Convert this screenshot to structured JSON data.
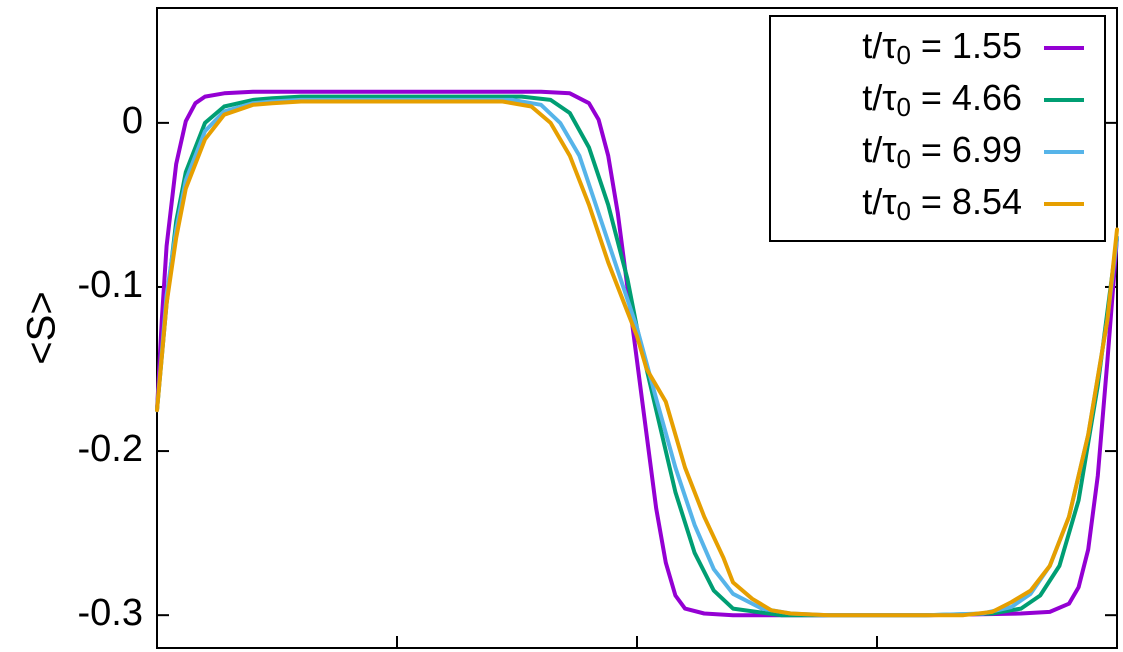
{
  "chart_data": {
    "type": "line",
    "ylabel": "<S>",
    "xlabel": "",
    "xlim": [
      0,
      1
    ],
    "ylim": [
      -0.32,
      0.07
    ],
    "x_ticks": [
      0,
      0.25,
      0.5,
      0.75,
      1
    ],
    "y_ticks": [
      0,
      -0.1,
      -0.2,
      -0.3
    ],
    "y_tick_labels": [
      "0",
      "-0.1",
      "-0.2",
      "-0.3"
    ],
    "grid": false,
    "legend_position": "top-right",
    "series": [
      {
        "name": "1.55",
        "legend_prefix": "t/τ",
        "legend_sub": "0",
        "color": "#9400d3",
        "x": [
          0,
          0.005,
          0.01,
          0.02,
          0.03,
          0.04,
          0.05,
          0.07,
          0.1,
          0.15,
          0.2,
          0.3,
          0.4,
          0.43,
          0.45,
          0.46,
          0.47,
          0.48,
          0.49,
          0.5,
          0.51,
          0.52,
          0.53,
          0.54,
          0.55,
          0.57,
          0.6,
          0.65,
          0.7,
          0.8,
          0.9,
          0.93,
          0.95,
          0.96,
          0.97,
          0.98,
          0.99,
          1.0
        ],
        "y": [
          -0.175,
          -0.12,
          -0.075,
          -0.025,
          0.001,
          0.012,
          0.016,
          0.018,
          0.019,
          0.019,
          0.019,
          0.019,
          0.019,
          0.018,
          0.012,
          0.002,
          -0.02,
          -0.055,
          -0.1,
          -0.145,
          -0.19,
          -0.235,
          -0.268,
          -0.288,
          -0.296,
          -0.299,
          -0.3,
          -0.3,
          -0.3,
          -0.3,
          -0.299,
          -0.298,
          -0.293,
          -0.283,
          -0.26,
          -0.215,
          -0.145,
          -0.07
        ]
      },
      {
        "name": "4.66",
        "legend_prefix": "t/τ",
        "legend_sub": "0",
        "color": "#009e73",
        "x": [
          0,
          0.01,
          0.02,
          0.03,
          0.05,
          0.07,
          0.1,
          0.12,
          0.15,
          0.2,
          0.3,
          0.38,
          0.41,
          0.43,
          0.45,
          0.47,
          0.49,
          0.5,
          0.52,
          0.54,
          0.56,
          0.58,
          0.6,
          0.65,
          0.7,
          0.8,
          0.87,
          0.9,
          0.92,
          0.94,
          0.96,
          0.98,
          1.0
        ],
        "y": [
          -0.175,
          -0.11,
          -0.06,
          -0.03,
          0.0,
          0.01,
          0.014,
          0.015,
          0.016,
          0.016,
          0.016,
          0.016,
          0.014,
          0.006,
          -0.015,
          -0.05,
          -0.095,
          -0.125,
          -0.175,
          -0.225,
          -0.262,
          -0.285,
          -0.296,
          -0.3,
          -0.3,
          -0.3,
          -0.299,
          -0.296,
          -0.288,
          -0.27,
          -0.23,
          -0.16,
          -0.07
        ]
      },
      {
        "name": "6.99",
        "legend_prefix": "t/τ",
        "legend_sub": "0",
        "color": "#56b4e9",
        "x": [
          0,
          0.01,
          0.02,
          0.03,
          0.05,
          0.07,
          0.1,
          0.12,
          0.15,
          0.2,
          0.3,
          0.37,
          0.4,
          0.42,
          0.44,
          0.46,
          0.48,
          0.5,
          0.52,
          0.54,
          0.56,
          0.58,
          0.6,
          0.63,
          0.66,
          0.7,
          0.8,
          0.86,
          0.89,
          0.91,
          0.93,
          0.95,
          0.97,
          0.99,
          1.0
        ],
        "y": [
          -0.175,
          -0.105,
          -0.065,
          -0.035,
          -0.005,
          0.007,
          0.012,
          0.013,
          0.014,
          0.014,
          0.014,
          0.014,
          0.011,
          0.0,
          -0.02,
          -0.055,
          -0.09,
          -0.125,
          -0.168,
          -0.21,
          -0.245,
          -0.272,
          -0.287,
          -0.296,
          -0.299,
          -0.3,
          -0.3,
          -0.299,
          -0.295,
          -0.287,
          -0.27,
          -0.24,
          -0.19,
          -0.12,
          -0.07
        ]
      },
      {
        "name": "8.54",
        "legend_prefix": "t/τ",
        "legend_sub": "0",
        "color": "#e69f00",
        "x": [
          0,
          0.01,
          0.02,
          0.03,
          0.05,
          0.07,
          0.1,
          0.12,
          0.15,
          0.2,
          0.3,
          0.36,
          0.39,
          0.41,
          0.43,
          0.45,
          0.47,
          0.49,
          0.5,
          0.51,
          0.53,
          0.55,
          0.57,
          0.59,
          0.6,
          0.62,
          0.64,
          0.66,
          0.7,
          0.8,
          0.84,
          0.87,
          0.89,
          0.91,
          0.93,
          0.95,
          0.97,
          0.99,
          1.0
        ],
        "y": [
          -0.175,
          -0.11,
          -0.07,
          -0.04,
          -0.01,
          0.005,
          0.011,
          0.012,
          0.013,
          0.013,
          0.013,
          0.013,
          0.01,
          0.0,
          -0.02,
          -0.05,
          -0.085,
          -0.115,
          -0.13,
          -0.15,
          -0.17,
          -0.21,
          -0.24,
          -0.265,
          -0.28,
          -0.29,
          -0.297,
          -0.299,
          -0.3,
          -0.3,
          -0.3,
          -0.298,
          -0.292,
          -0.285,
          -0.27,
          -0.24,
          -0.19,
          -0.12,
          -0.065
        ]
      }
    ]
  }
}
